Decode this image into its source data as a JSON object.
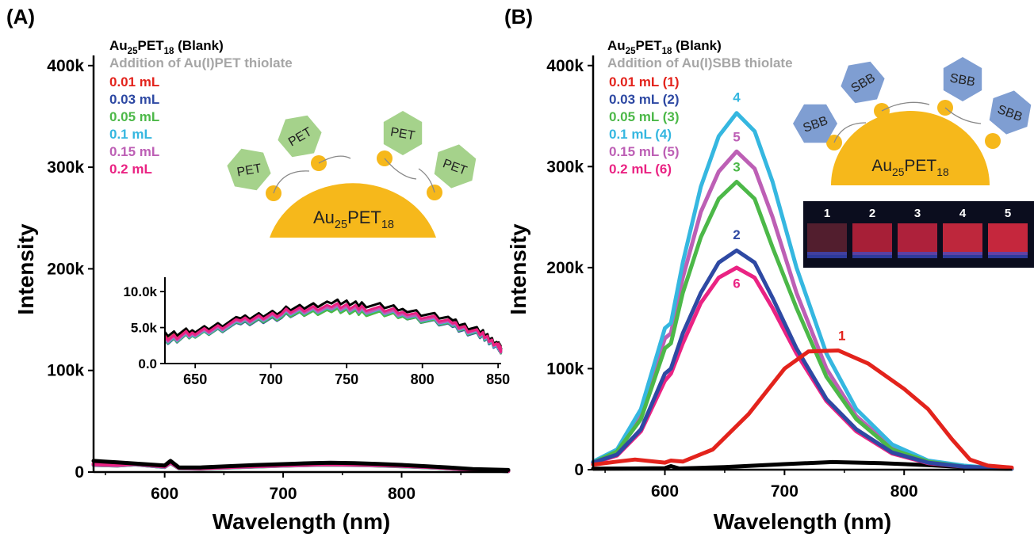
{
  "figure": {
    "colors": {
      "blank": "#000000",
      "added": "#a6a6a6",
      "0.01": "#e3231c",
      "0.03": "#2e49a3",
      "0.05": "#4cb848",
      "0.1": "#35b7e0",
      "0.15": "#bd5fb5",
      "0.2": "#ea2383",
      "gold": "#f6b81b",
      "hexagon_pet": "#a5d28b",
      "hexagon_sbb": "#7f9ed2"
    }
  },
  "chart_data": [
    {
      "panel_label": "(A)",
      "type": "line",
      "xlabel": "Wavelength (nm)",
      "ylabel": "Intensity",
      "xlim": [
        540,
        890
      ],
      "ylim": [
        0,
        410000
      ],
      "xticks": [
        600,
        700,
        800
      ],
      "xtick_labels": [
        "600",
        "700",
        "800"
      ],
      "yticks": [
        0,
        100000,
        200000,
        300000,
        400000
      ],
      "ytick_labels": [
        "0",
        "100k",
        "200k",
        "300k",
        "400k"
      ],
      "legend": {
        "blank": {
          "base": "Au",
          "sub1": "25",
          "mid": "PET",
          "sub2": "18",
          "tail": " (Blank)"
        },
        "addition": "Addition of Au(I)PET thiolate",
        "entries": [
          {
            "label": "0.01 mL",
            "color": "#e3231c"
          },
          {
            "label": "0.03 mL",
            "color": "#2e49a3"
          },
          {
            "label": "0.05 mL",
            "color": "#4cb848"
          },
          {
            "label": "0.1 mL",
            "color": "#35b7e0"
          },
          {
            "label": "0.15 mL",
            "color": "#bd5fb5"
          },
          {
            "label": "0.2 mL",
            "color": "#ea2383"
          }
        ]
      },
      "scheme": {
        "ligand": "PET",
        "core": {
          "base": "Au",
          "sub1": "25",
          "mid": "PET",
          "sub2": "18"
        }
      },
      "series": [
        {
          "name": "Blank",
          "color": "#000000",
          "x": [
            540,
            560,
            580,
            600,
            605,
            612,
            630,
            650,
            675,
            700,
            725,
            740,
            760,
            780,
            800,
            820,
            840,
            860,
            890
          ],
          "y": [
            11000,
            9500,
            8000,
            6500,
            11000,
            4500,
            4500,
            5500,
            6800,
            7800,
            8800,
            9200,
            8800,
            8000,
            7000,
            5800,
            4500,
            3000,
            2000
          ]
        },
        {
          "name": "0.01 mL",
          "color": "#e3231c",
          "x": [
            540,
            560,
            575,
            600,
            605,
            612,
            630,
            660,
            700,
            735,
            770,
            800,
            830,
            850,
            870,
            890
          ],
          "y": [
            7500,
            6800,
            8000,
            5500,
            9500,
            4000,
            3500,
            5000,
            6500,
            7800,
            7000,
            6000,
            4500,
            3000,
            1800,
            1000
          ]
        },
        {
          "name": "0.03 mL",
          "color": "#2e49a3",
          "x": [
            540,
            560,
            575,
            600,
            605,
            612,
            630,
            660,
            700,
            735,
            770,
            800,
            830,
            850,
            870,
            890
          ],
          "y": [
            7000,
            6500,
            7500,
            5000,
            9000,
            3800,
            3300,
            4800,
            6300,
            7300,
            6800,
            5800,
            4300,
            2900,
            1700,
            900
          ]
        },
        {
          "name": "0.05 mL",
          "color": "#4cb848",
          "x": [
            540,
            560,
            575,
            600,
            605,
            612,
            630,
            660,
            700,
            735,
            770,
            800,
            830,
            850,
            870,
            890
          ],
          "y": [
            7000,
            6400,
            7400,
            5000,
            9000,
            3700,
            3200,
            4700,
            6200,
            7200,
            6700,
            5700,
            4200,
            2800,
            1700,
            900
          ]
        },
        {
          "name": "0.1 mL",
          "color": "#35b7e0",
          "x": [
            540,
            560,
            575,
            600,
            605,
            612,
            630,
            660,
            700,
            735,
            770,
            800,
            830,
            850,
            870,
            890
          ],
          "y": [
            7200,
            6600,
            7600,
            5100,
            9200,
            3900,
            3400,
            4900,
            6400,
            7400,
            6900,
            5900,
            4400,
            2900,
            1700,
            900
          ]
        },
        {
          "name": "0.15 mL",
          "color": "#bd5fb5",
          "x": [
            540,
            560,
            575,
            600,
            605,
            612,
            630,
            660,
            700,
            735,
            770,
            800,
            830,
            850,
            870,
            890
          ],
          "y": [
            7300,
            6700,
            7700,
            5200,
            9300,
            4000,
            3500,
            5000,
            6500,
            7500,
            7000,
            6000,
            4500,
            3000,
            1800,
            1000
          ]
        },
        {
          "name": "0.2 mL",
          "color": "#ea2383",
          "x": [
            540,
            560,
            575,
            600,
            605,
            612,
            630,
            660,
            700,
            735,
            770,
            800,
            830,
            850,
            870,
            890
          ],
          "y": [
            7800,
            7200,
            8200,
            5800,
            9800,
            4300,
            3800,
            5300,
            6800,
            7800,
            7300,
            6300,
            4700,
            3100,
            1900,
            1100
          ]
        }
      ],
      "inset": {
        "type": "line",
        "xlim": [
          630,
          852
        ],
        "ylim": [
          0,
          12000
        ],
        "xticks": [
          650,
          700,
          750,
          800,
          850
        ],
        "xtick_labels": [
          "650",
          "700",
          "750",
          "800",
          "850"
        ],
        "yticks": [
          0,
          5000,
          10000
        ],
        "ytick_labels": [
          "0.0",
          "5.0k",
          "10.0k"
        ],
        "series": [
          {
            "name": "Blank",
            "color": "#000000",
            "x": [
              630,
              650,
              680,
              710,
              740,
              760,
              790,
              820,
              840,
              850,
              852
            ],
            "y": [
              4100,
              4600,
              6200,
              7500,
              8500,
              8300,
              7500,
              6000,
              4300,
              2700,
              2200
            ]
          },
          {
            "name": "0.01 mL",
            "color": "#e3231c",
            "x": [
              630,
              650,
              680,
              710,
              740,
              760,
              790,
              820,
              840,
              850,
              852
            ],
            "y": [
              3600,
              4300,
              5800,
              7000,
              7900,
              7700,
              7000,
              5600,
              4000,
              2500,
              2000
            ]
          },
          {
            "name": "0.03 mL",
            "color": "#2e49a3",
            "x": [
              630,
              650,
              680,
              710,
              740,
              760,
              790,
              820,
              840,
              850,
              852
            ],
            "y": [
              3000,
              3900,
              5400,
              6600,
              7400,
              7200,
              6500,
              5100,
              3600,
              2200,
              1800
            ]
          },
          {
            "name": "0.05 mL",
            "color": "#4cb848",
            "x": [
              630,
              650,
              680,
              710,
              740,
              760,
              790,
              820,
              840,
              850,
              852
            ],
            "y": [
              3100,
              3900,
              5500,
              6700,
              7300,
              7100,
              6500,
              5200,
              3700,
              2300,
              1800
            ]
          },
          {
            "name": "0.1 mL",
            "color": "#35b7e0",
            "x": [
              630,
              650,
              680,
              710,
              740,
              760,
              790,
              820,
              840,
              850,
              852
            ],
            "y": [
              3200,
              4000,
              5600,
              6900,
              7600,
              7400,
              6700,
              5300,
              3800,
              2300,
              1900
            ]
          },
          {
            "name": "0.15 mL",
            "color": "#bd5fb5",
            "x": [
              630,
              650,
              680,
              710,
              740,
              760,
              790,
              820,
              840,
              850,
              852
            ],
            "y": [
              3300,
              4100,
              5700,
              7000,
              7700,
              7500,
              6800,
              5400,
              3900,
              2400,
              1900
            ]
          },
          {
            "name": "0.2 mL",
            "color": "#ea2383",
            "x": [
              630,
              650,
              680,
              710,
              740,
              760,
              790,
              820,
              840,
              850,
              852
            ],
            "y": [
              3500,
              4300,
              5900,
              7200,
              8000,
              7800,
              7100,
              5600,
              4000,
              2500,
              2000
            ]
          }
        ]
      }
    },
    {
      "panel_label": "(B)",
      "type": "line",
      "xlabel": "Wavelength (nm)",
      "ylabel": "Intensity",
      "xlim": [
        540,
        890
      ],
      "ylim": [
        0,
        410000
      ],
      "xticks": [
        600,
        700,
        800
      ],
      "xtick_labels": [
        "600",
        "700",
        "800"
      ],
      "yticks": [
        0,
        100000,
        200000,
        300000,
        400000
      ],
      "ytick_labels": [
        "0",
        "100k",
        "200k",
        "300k",
        "400k"
      ],
      "legend": {
        "blank": {
          "base": "Au",
          "sub1": "25",
          "mid": "PET",
          "sub2": "18",
          "tail": " (Blank)"
        },
        "addition": "Addition of Au(I)SBB thiolate",
        "entries": [
          {
            "label": "0.01 mL (1)",
            "color": "#e3231c"
          },
          {
            "label": "0.03 mL (2)",
            "color": "#2e49a3"
          },
          {
            "label": "0.05 mL (3)",
            "color": "#4cb848"
          },
          {
            "label": "0.1 mL (4)",
            "color": "#35b7e0"
          },
          {
            "label": "0.15 mL (5)",
            "color": "#bd5fb5"
          },
          {
            "label": "0.2 mL (6)",
            "color": "#ea2383"
          }
        ]
      },
      "scheme": {
        "ligand": "SBB",
        "core": {
          "base": "Au",
          "sub1": "25",
          "mid": "PET",
          "sub2": "18"
        }
      },
      "vial_labels": [
        "1",
        "2",
        "3",
        "4",
        "5"
      ],
      "peak_labels": [
        {
          "text": "1",
          "color": "#e3231c",
          "x": 748,
          "y": 128000
        },
        {
          "text": "2",
          "color": "#2e49a3",
          "x": 660,
          "y": 228000
        },
        {
          "text": "3",
          "color": "#4cb848",
          "x": 660,
          "y": 295000
        },
        {
          "text": "4",
          "color": "#35b7e0",
          "x": 660,
          "y": 364000
        },
        {
          "text": "5",
          "color": "#bd5fb5",
          "x": 660,
          "y": 325000
        },
        {
          "text": "6",
          "color": "#ea2383",
          "x": 660,
          "y": 180000
        }
      ],
      "series": [
        {
          "name": "Blank",
          "color": "#000000",
          "x": [
            540,
            570,
            600,
            605,
            612,
            650,
            700,
            740,
            780,
            820,
            850,
            870,
            890
          ],
          "y": [
            1000,
            1200,
            1500,
            3500,
            1200,
            2500,
            5500,
            7500,
            6500,
            4500,
            2500,
            1200,
            800
          ]
        },
        {
          "name": "0.01 mL (1)",
          "color": "#e3231c",
          "x": [
            540,
            560,
            575,
            600,
            605,
            615,
            640,
            670,
            700,
            720,
            745,
            770,
            800,
            820,
            840,
            855,
            870,
            890
          ],
          "y": [
            5000,
            8000,
            10000,
            7000,
            9000,
            8000,
            20000,
            55000,
            100000,
            117000,
            118000,
            105000,
            80000,
            60000,
            30000,
            10000,
            4000,
            2000
          ]
        },
        {
          "name": "0.03 mL (2)",
          "color": "#2e49a3",
          "x": [
            540,
            560,
            580,
            600,
            605,
            615,
            630,
            645,
            660,
            675,
            690,
            710,
            735,
            760,
            790,
            820,
            850,
            870,
            890
          ],
          "y": [
            7000,
            15000,
            40000,
            95000,
            100000,
            135000,
            175000,
            205000,
            217000,
            205000,
            170000,
            120000,
            70000,
            40000,
            17000,
            7000,
            3000,
            2000,
            1000
          ]
        },
        {
          "name": "0.05 mL (3)",
          "color": "#4cb848",
          "x": [
            540,
            560,
            580,
            600,
            605,
            615,
            630,
            645,
            660,
            675,
            690,
            710,
            735,
            760,
            790,
            820,
            850,
            870,
            890
          ],
          "y": [
            7000,
            18000,
            50000,
            120000,
            125000,
            175000,
            230000,
            268000,
            285000,
            268000,
            220000,
            160000,
            92000,
            50000,
            20000,
            8000,
            3000,
            2000,
            1000
          ]
        },
        {
          "name": "0.1 mL (4)",
          "color": "#35b7e0",
          "x": [
            540,
            560,
            580,
            600,
            605,
            615,
            630,
            645,
            660,
            675,
            690,
            710,
            735,
            760,
            790,
            820,
            850,
            870,
            890
          ],
          "y": [
            8000,
            20000,
            60000,
            140000,
            145000,
            205000,
            280000,
            330000,
            353000,
            335000,
            285000,
            200000,
            115000,
            60000,
            25000,
            9000,
            4000,
            2000,
            1000
          ]
        },
        {
          "name": "0.15 mL (5)",
          "color": "#bd5fb5",
          "x": [
            540,
            560,
            580,
            600,
            605,
            615,
            630,
            645,
            660,
            675,
            690,
            710,
            735,
            760,
            790,
            820,
            850,
            870,
            890
          ],
          "y": [
            7500,
            19000,
            55000,
            130000,
            135000,
            190000,
            255000,
            295000,
            315000,
            298000,
            250000,
            175000,
            100000,
            53000,
            22000,
            8000,
            3500,
            2000,
            1000
          ]
        },
        {
          "name": "0.2 mL (6)",
          "color": "#ea2383",
          "x": [
            540,
            560,
            580,
            600,
            605,
            615,
            630,
            645,
            660,
            675,
            690,
            710,
            735,
            760,
            790,
            820,
            850,
            870,
            890
          ],
          "y": [
            6500,
            14000,
            38000,
            88000,
            95000,
            125000,
            165000,
            190000,
            200000,
            190000,
            160000,
            115000,
            68000,
            38000,
            16000,
            6500,
            3000,
            2000,
            1000
          ]
        }
      ]
    }
  ]
}
